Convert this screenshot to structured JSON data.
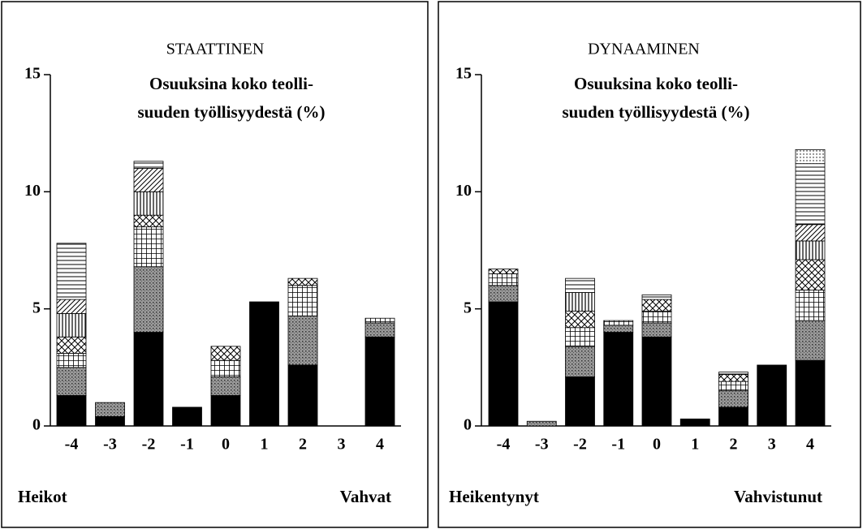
{
  "chart_data": [
    {
      "type": "bar",
      "stacked": true,
      "title": "STAATTINEN",
      "annotation": [
        "Osuuksina koko teolli-",
        "suuden työllisyydestä (%)"
      ],
      "x_low_label": "Heikot",
      "x_high_label": "Vahvat",
      "categories": [
        "-4",
        "-3",
        "-2",
        "-1",
        "0",
        "1",
        "2",
        "3",
        "4"
      ],
      "ylim": [
        0,
        15
      ],
      "yticks": [
        0,
        5,
        10,
        15
      ],
      "series": [
        {
          "color": "#000000",
          "pattern": "solid",
          "values": [
            1.3,
            0.4,
            4.0,
            0.8,
            1.3,
            5.3,
            2.6,
            0,
            3.8
          ]
        },
        {
          "color": "#777777",
          "pattern": "stipple",
          "values": [
            1.2,
            0.6,
            2.8,
            0,
            0.8,
            0,
            2.1,
            0,
            0.6
          ]
        },
        {
          "color": "#000000",
          "pattern": "grid",
          "values": [
            0.6,
            0,
            1.7,
            0,
            0.7,
            0,
            1.3,
            0,
            0.2
          ]
        },
        {
          "color": "#000000",
          "pattern": "crosshatch",
          "values": [
            0.7,
            0,
            0.5,
            0,
            0.6,
            0,
            0.3,
            0,
            0
          ]
        },
        {
          "color": "#000000",
          "pattern": "vertical",
          "values": [
            1.0,
            0,
            1.0,
            0,
            0,
            0,
            0,
            0,
            0
          ]
        },
        {
          "color": "#000000",
          "pattern": "diagonal",
          "values": [
            0.6,
            0,
            1.0,
            0,
            0,
            0,
            0,
            0,
            0
          ]
        },
        {
          "color": "#000000",
          "pattern": "horizontal",
          "values": [
            2.4,
            0,
            0.3,
            0,
            0,
            0,
            0,
            0,
            0
          ]
        },
        {
          "color": "#000000",
          "pattern": "dots",
          "values": [
            0,
            0,
            0,
            0,
            0,
            0,
            0,
            0,
            0
          ]
        }
      ]
    },
    {
      "type": "bar",
      "stacked": true,
      "title": "DYNAAMINEN",
      "annotation": [
        "Osuuksina koko teolli-",
        "suuden työllisyydestä (%)"
      ],
      "x_low_label": "Heikentynyt",
      "x_high_label": "Vahvistunut",
      "categories": [
        "-4",
        "-3",
        "-2",
        "-1",
        "0",
        "1",
        "2",
        "3",
        "4"
      ],
      "ylim": [
        0,
        15
      ],
      "yticks": [
        0,
        5,
        10,
        15
      ],
      "series": [
        {
          "color": "#000000",
          "pattern": "solid",
          "values": [
            5.3,
            0,
            2.1,
            4.0,
            3.8,
            0.3,
            0.8,
            2.6,
            2.8
          ]
        },
        {
          "color": "#777777",
          "pattern": "stipple",
          "values": [
            0.7,
            0.2,
            1.3,
            0.3,
            0.6,
            0,
            0.7,
            0,
            1.7
          ]
        },
        {
          "color": "#000000",
          "pattern": "grid",
          "values": [
            0.5,
            0,
            0.8,
            0.2,
            0.5,
            0,
            0.4,
            0,
            1.3
          ]
        },
        {
          "color": "#000000",
          "pattern": "crosshatch",
          "values": [
            0.2,
            0,
            0.7,
            0,
            0.5,
            0,
            0.3,
            0,
            1.3
          ]
        },
        {
          "color": "#000000",
          "pattern": "vertical",
          "values": [
            0,
            0,
            0.8,
            0,
            0,
            0,
            0,
            0,
            0.8
          ]
        },
        {
          "color": "#000000",
          "pattern": "diagonal",
          "values": [
            0,
            0,
            0,
            0,
            0,
            0,
            0,
            0,
            0.7
          ]
        },
        {
          "color": "#000000",
          "pattern": "horizontal",
          "values": [
            0,
            0,
            0.6,
            0,
            0.2,
            0,
            0.1,
            0,
            2.6
          ]
        },
        {
          "color": "#000000",
          "pattern": "dots",
          "values": [
            0,
            0,
            0,
            0,
            0,
            0,
            0,
            0,
            0.6
          ]
        }
      ]
    }
  ]
}
